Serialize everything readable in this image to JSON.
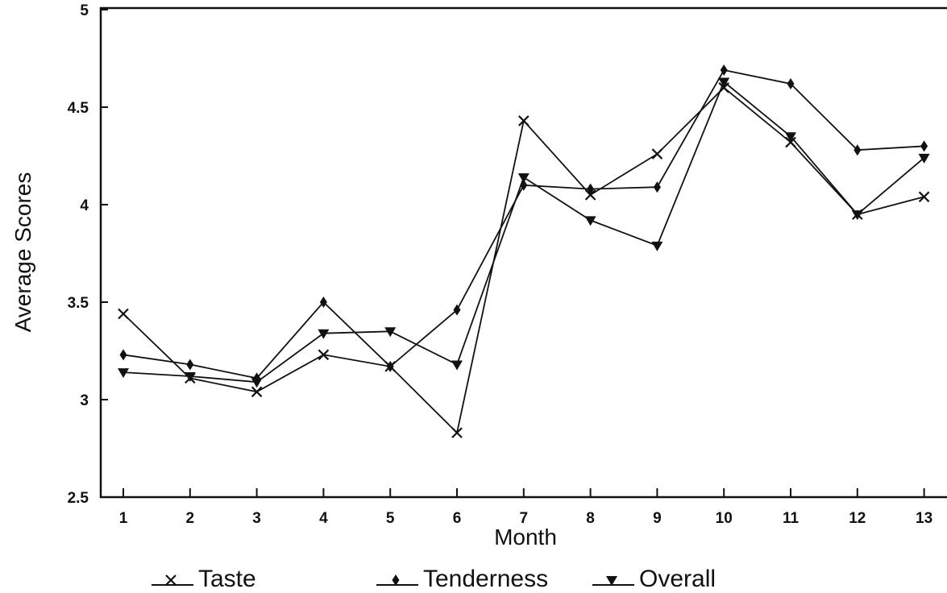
{
  "chart_data": {
    "type": "line",
    "title": "",
    "xlabel": "Month",
    "ylabel": "Average Scores",
    "x": [
      1,
      2,
      3,
      4,
      5,
      6,
      7,
      8,
      9,
      10,
      11,
      12,
      13
    ],
    "x_tick_labels": [
      "1",
      "2",
      "3",
      "4",
      "5",
      "6",
      "7",
      "8",
      "9",
      "10",
      "11",
      "12",
      "13"
    ],
    "ylim": [
      2.5,
      5
    ],
    "y_ticks": [
      2.5,
      3,
      3.5,
      4,
      4.5,
      5
    ],
    "y_tick_labels": [
      "2.5",
      "3",
      "3.5",
      "4",
      "4.5",
      "5"
    ],
    "grid": false,
    "legend_position": "bottom",
    "series": [
      {
        "name": "Taste",
        "marker": "x",
        "values": [
          3.44,
          3.11,
          3.04,
          3.23,
          3.17,
          2.83,
          4.43,
          4.05,
          4.26,
          4.6,
          4.32,
          3.95,
          4.04
        ]
      },
      {
        "name": "Tenderness",
        "marker": "diamond",
        "values": [
          3.23,
          3.18,
          3.11,
          3.5,
          3.17,
          3.46,
          4.1,
          4.08,
          4.09,
          4.69,
          4.62,
          4.28,
          4.3
        ]
      },
      {
        "name": "Overall",
        "marker": "triangle-down",
        "values": [
          3.14,
          3.12,
          3.09,
          3.34,
          3.35,
          3.18,
          4.14,
          3.92,
          3.79,
          4.63,
          4.35,
          3.95,
          4.24
        ]
      }
    ]
  }
}
